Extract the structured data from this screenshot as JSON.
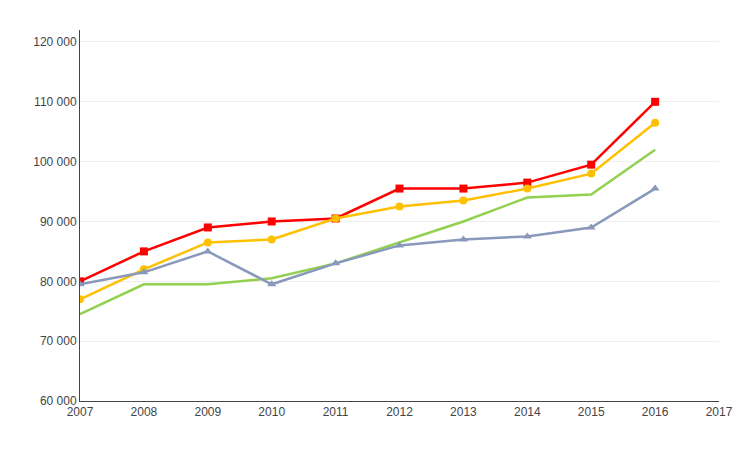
{
  "chart_data": {
    "type": "line",
    "x": [
      2007,
      2008,
      2009,
      2010,
      2011,
      2012,
      2013,
      2014,
      2015,
      2016
    ],
    "series": [
      {
        "color": "#FF0000",
        "marker": "square",
        "values": [
          80000,
          85000,
          89000,
          90000,
          90500,
          95500,
          95500,
          96500,
          99500,
          110000
        ]
      },
      {
        "color": "#FFC000",
        "marker": "circle",
        "values": [
          77000,
          82000,
          86500,
          87000,
          90500,
          92500,
          93500,
          95500,
          98000,
          106500
        ]
      },
      {
        "color": "#92D050",
        "values": [
          74500,
          79500,
          79500,
          80500,
          83000,
          86500,
          90000,
          94000,
          94500,
          102000
        ]
      },
      {
        "color": "#8899BB",
        "marker": "triangle-up",
        "values": [
          79500,
          81500,
          85000,
          79500,
          83000,
          86000,
          87000,
          87500,
          89000,
          95500
        ]
      }
    ],
    "xlim": [
      2007,
      2017
    ],
    "xticks": [
      2007,
      2008,
      2009,
      2010,
      2011,
      2012,
      2013,
      2014,
      2015,
      2016,
      2017
    ],
    "ylim": [
      60000,
      122000
    ],
    "yticks": [
      {
        "value": 60000,
        "label": "60 000"
      },
      {
        "value": 70000,
        "label": "70 000"
      },
      {
        "value": 80000,
        "label": "80 000"
      },
      {
        "value": 90000,
        "label": "90 000"
      },
      {
        "value": 100000,
        "label": "100 000"
      },
      {
        "value": 110000,
        "label": "110 000"
      },
      {
        "value": 120000,
        "label": "120 000"
      }
    ],
    "grid": true
  }
}
